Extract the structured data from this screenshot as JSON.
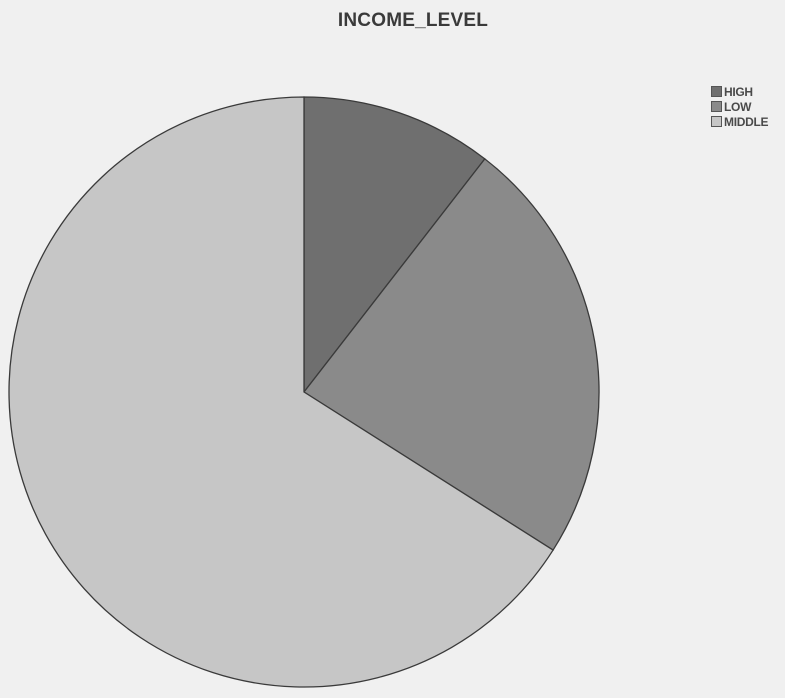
{
  "chart_data": {
    "type": "pie",
    "title": "INCOME_LEVEL",
    "categories": [
      "HIGH",
      "LOW",
      "MIDDLE"
    ],
    "values": [
      10.5,
      23.5,
      66.0
    ],
    "colors": [
      "#6f6f6f",
      "#8a8a8a",
      "#c6c6c6"
    ],
    "legend": "top-right"
  }
}
